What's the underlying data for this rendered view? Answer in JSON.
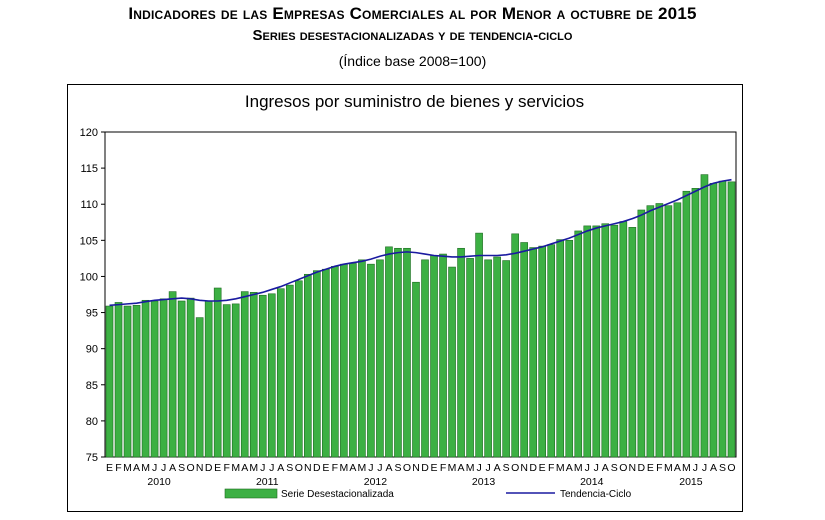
{
  "header": {
    "title": "Indicadores de las Empresas Comerciales al por Menor a octubre de 2015",
    "subtitle": "Series desestacionalizadas y de tendencia-ciclo",
    "base": "(Índice base 2008=100)"
  },
  "colors": {
    "bar_fill": "#3cb043",
    "bar_stroke": "#1e6b22",
    "trend_line": "#1a1aa0"
  },
  "chart_data": {
    "type": "bar",
    "title": "Ingresos por suministro de bienes y servicios",
    "ylim": [
      75,
      120
    ],
    "yticks": [
      75,
      80,
      85,
      90,
      95,
      100,
      105,
      110,
      115,
      120
    ],
    "grid": false,
    "legend": "bottom",
    "month_labels": [
      "E",
      "F",
      "M",
      "A",
      "M",
      "J",
      "J",
      "A",
      "S",
      "O",
      "N",
      "D"
    ],
    "years": [
      "2010",
      "2011",
      "2012",
      "2013",
      "2014",
      "2015"
    ],
    "series": [
      {
        "name": "Serie Desestacionalizada",
        "kind": "bar",
        "values": [
          95.9,
          96.4,
          95.9,
          96.0,
          96.7,
          96.6,
          96.9,
          97.9,
          96.6,
          97.0,
          94.3,
          96.6,
          98.4,
          96.1,
          96.2,
          97.9,
          97.8,
          97.4,
          97.6,
          98.3,
          98.8,
          99.4,
          100.3,
          100.8,
          101.0,
          101.4,
          101.7,
          101.8,
          102.3,
          101.7,
          102.3,
          104.1,
          103.9,
          103.9,
          99.2,
          102.3,
          102.9,
          103.1,
          101.3,
          103.9,
          102.5,
          106.0,
          102.3,
          102.7,
          102.2,
          105.9,
          104.7,
          104.0,
          104.2,
          104.4,
          105.1,
          105.0,
          106.3,
          107.0,
          107.0,
          107.3,
          107.1,
          107.6,
          106.8,
          109.2,
          109.8,
          110.1,
          109.8,
          110.2,
          111.8,
          112.2,
          114.1,
          112.9,
          113.2,
          113.1
        ]
      },
      {
        "name": "Tendencia-Ciclo",
        "kind": "line",
        "values": [
          96.0,
          96.1,
          96.2,
          96.3,
          96.5,
          96.7,
          96.8,
          96.9,
          97.0,
          96.9,
          96.7,
          96.6,
          96.6,
          96.7,
          96.9,
          97.2,
          97.5,
          97.8,
          98.2,
          98.6,
          99.1,
          99.6,
          100.1,
          100.6,
          101.0,
          101.4,
          101.7,
          101.9,
          102.1,
          102.4,
          102.8,
          103.1,
          103.3,
          103.4,
          103.3,
          103.1,
          102.9,
          102.8,
          102.7,
          102.7,
          102.8,
          102.9,
          102.9,
          102.9,
          103.0,
          103.2,
          103.5,
          103.8,
          104.1,
          104.5,
          104.9,
          105.3,
          105.8,
          106.3,
          106.7,
          107.0,
          107.3,
          107.6,
          108.0,
          108.5,
          109.1,
          109.6,
          110.1,
          110.6,
          111.2,
          111.8,
          112.4,
          112.9,
          113.2,
          113.4
        ]
      }
    ]
  }
}
